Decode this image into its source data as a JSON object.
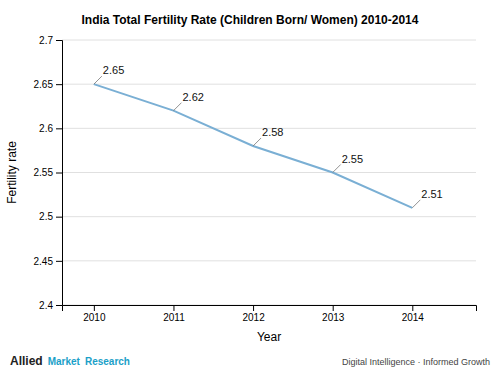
{
  "chart_data": {
    "type": "line",
    "title": "India Total Fertility Rate (Children Born/ Women) 2010-2014",
    "x_label": "Year",
    "y_label": "Fertility rate",
    "x": [
      2010,
      2011,
      2012,
      2013,
      2014
    ],
    "values": [
      2.65,
      2.62,
      2.58,
      2.55,
      2.51
    ],
    "color": "#7aafd4",
    "xlim": [
      2009.6,
      2014.8
    ],
    "xticks": [
      2010,
      2011,
      2012,
      2013,
      2014
    ],
    "ylim": [
      2.4,
      2.7
    ],
    "yticks": [
      2.4,
      2.45,
      2.5,
      2.55,
      2.6,
      2.65,
      2.7
    ],
    "grid": true,
    "data_labels": true,
    "annotations": [
      "Allied",
      "Market",
      "Research",
      "Digital Intelligence · Informed Growth"
    ]
  }
}
